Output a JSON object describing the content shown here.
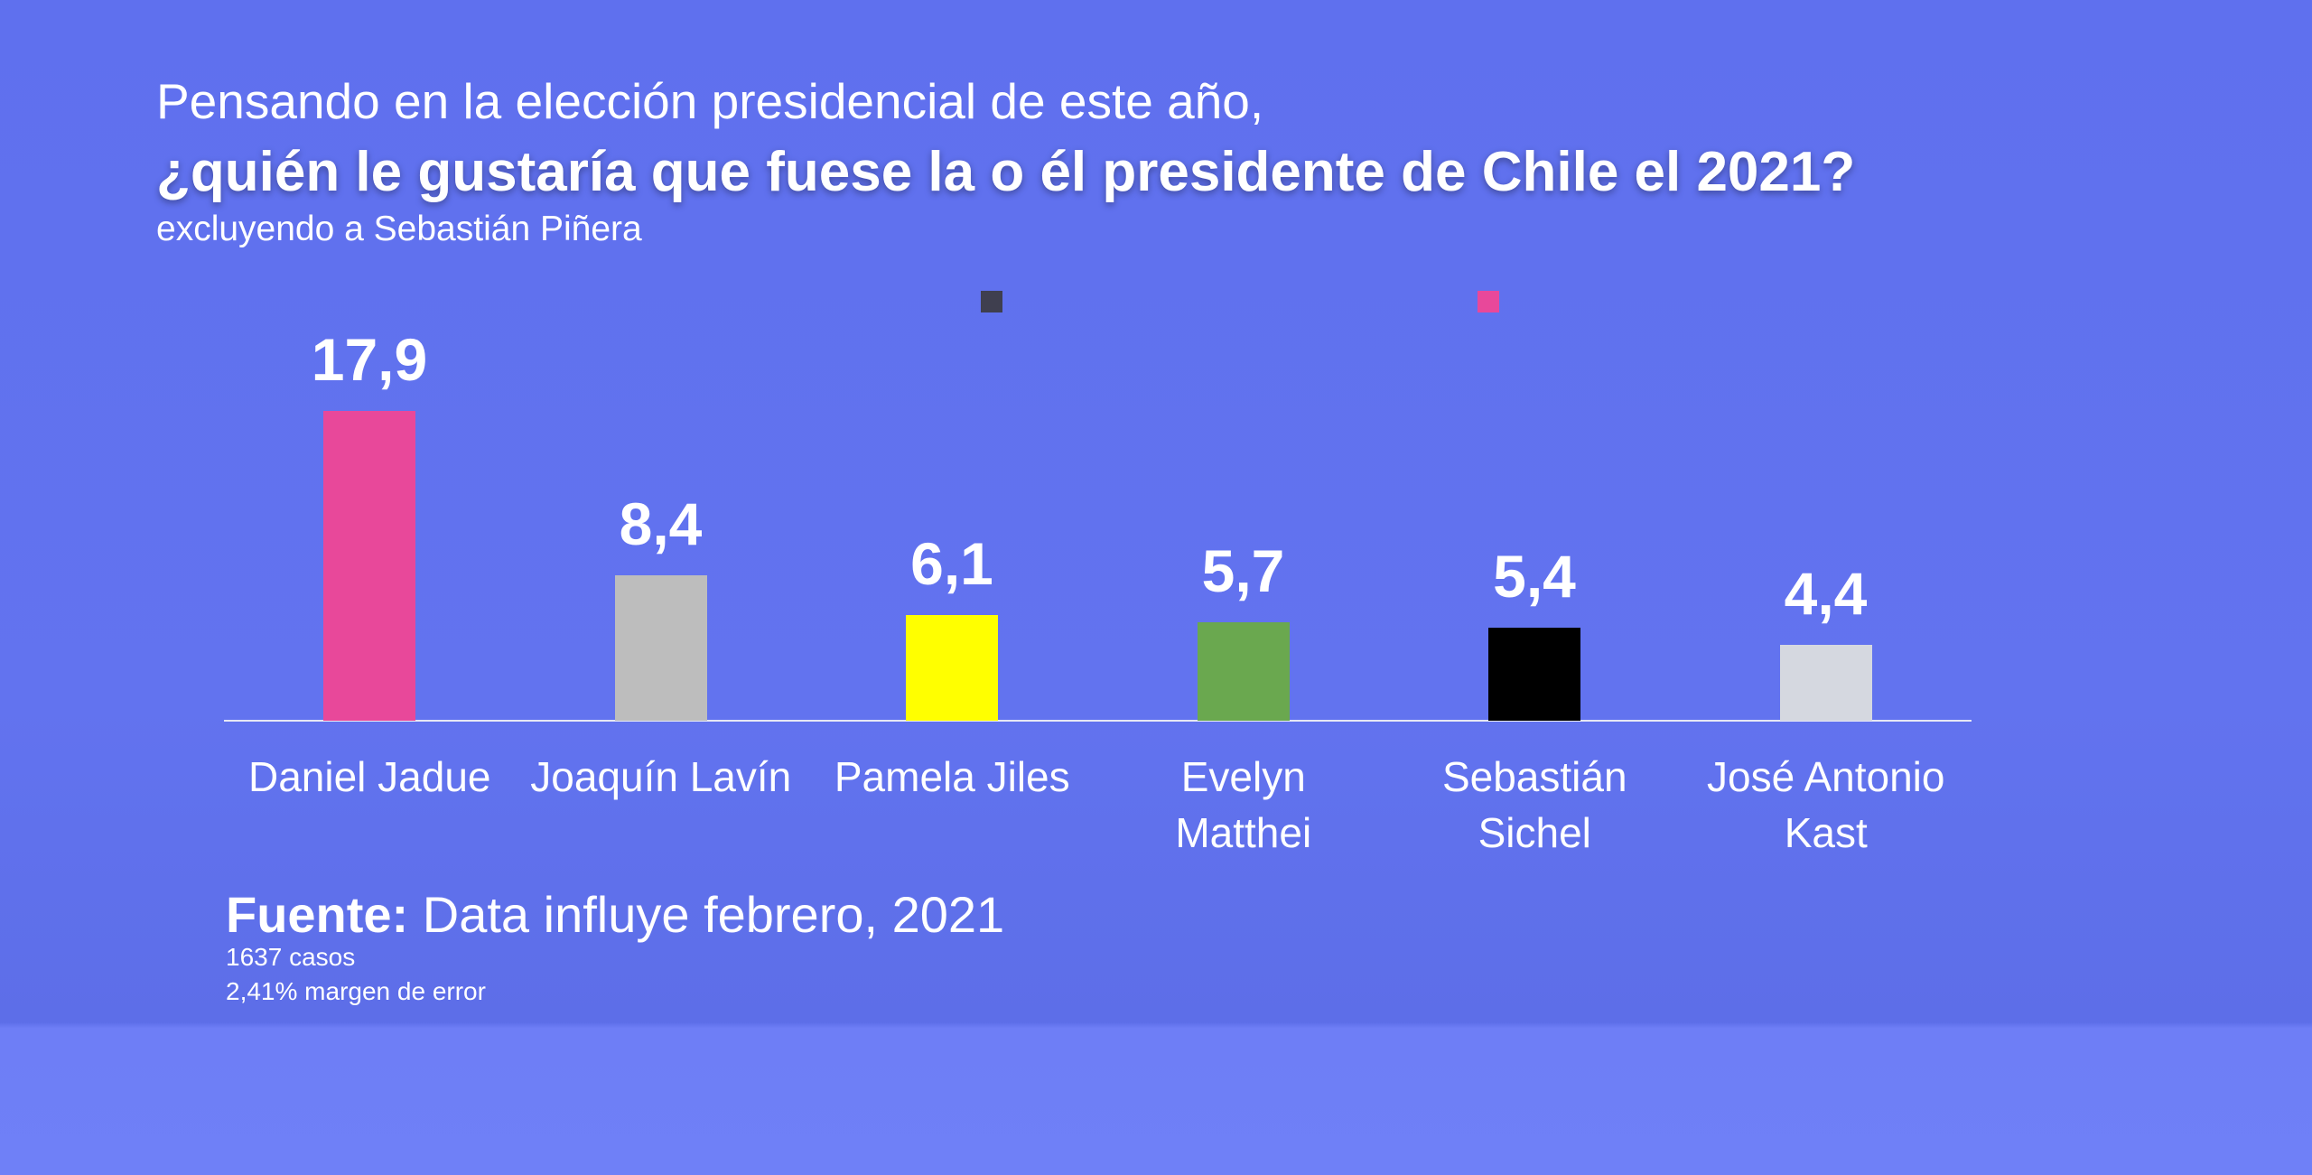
{
  "chart_data": {
    "type": "bar",
    "title": "Pensando en la elección presidencial de este año,",
    "question": "¿quién le gustaría que fuese la o él presidente de Chile el 2021?",
    "subtitle": "excluyendo a Sebastián Piñera",
    "categories": [
      "Daniel Jadue",
      "Joaquín Lavín",
      "Pamela Jiles",
      "Evelyn Matthei",
      "Sebastián Sichel",
      "José Antonio Kast"
    ],
    "values": [
      17.9,
      8.4,
      6.1,
      5.7,
      5.4,
      4.4
    ],
    "value_labels": [
      "17,9",
      "8,4",
      "6,1",
      "5,7",
      "5,4",
      "4,4"
    ],
    "colors": [
      "#e8489a",
      "#bdbdbd",
      "#ffff00",
      "#6aa84f",
      "#000000",
      "#d5d8e0"
    ],
    "ylim": [
      0,
      20
    ],
    "source_label": "Fuente:",
    "source": "Data influye febrero, 2021",
    "notes": [
      "1637 casos",
      "2,41% margen de error"
    ]
  }
}
